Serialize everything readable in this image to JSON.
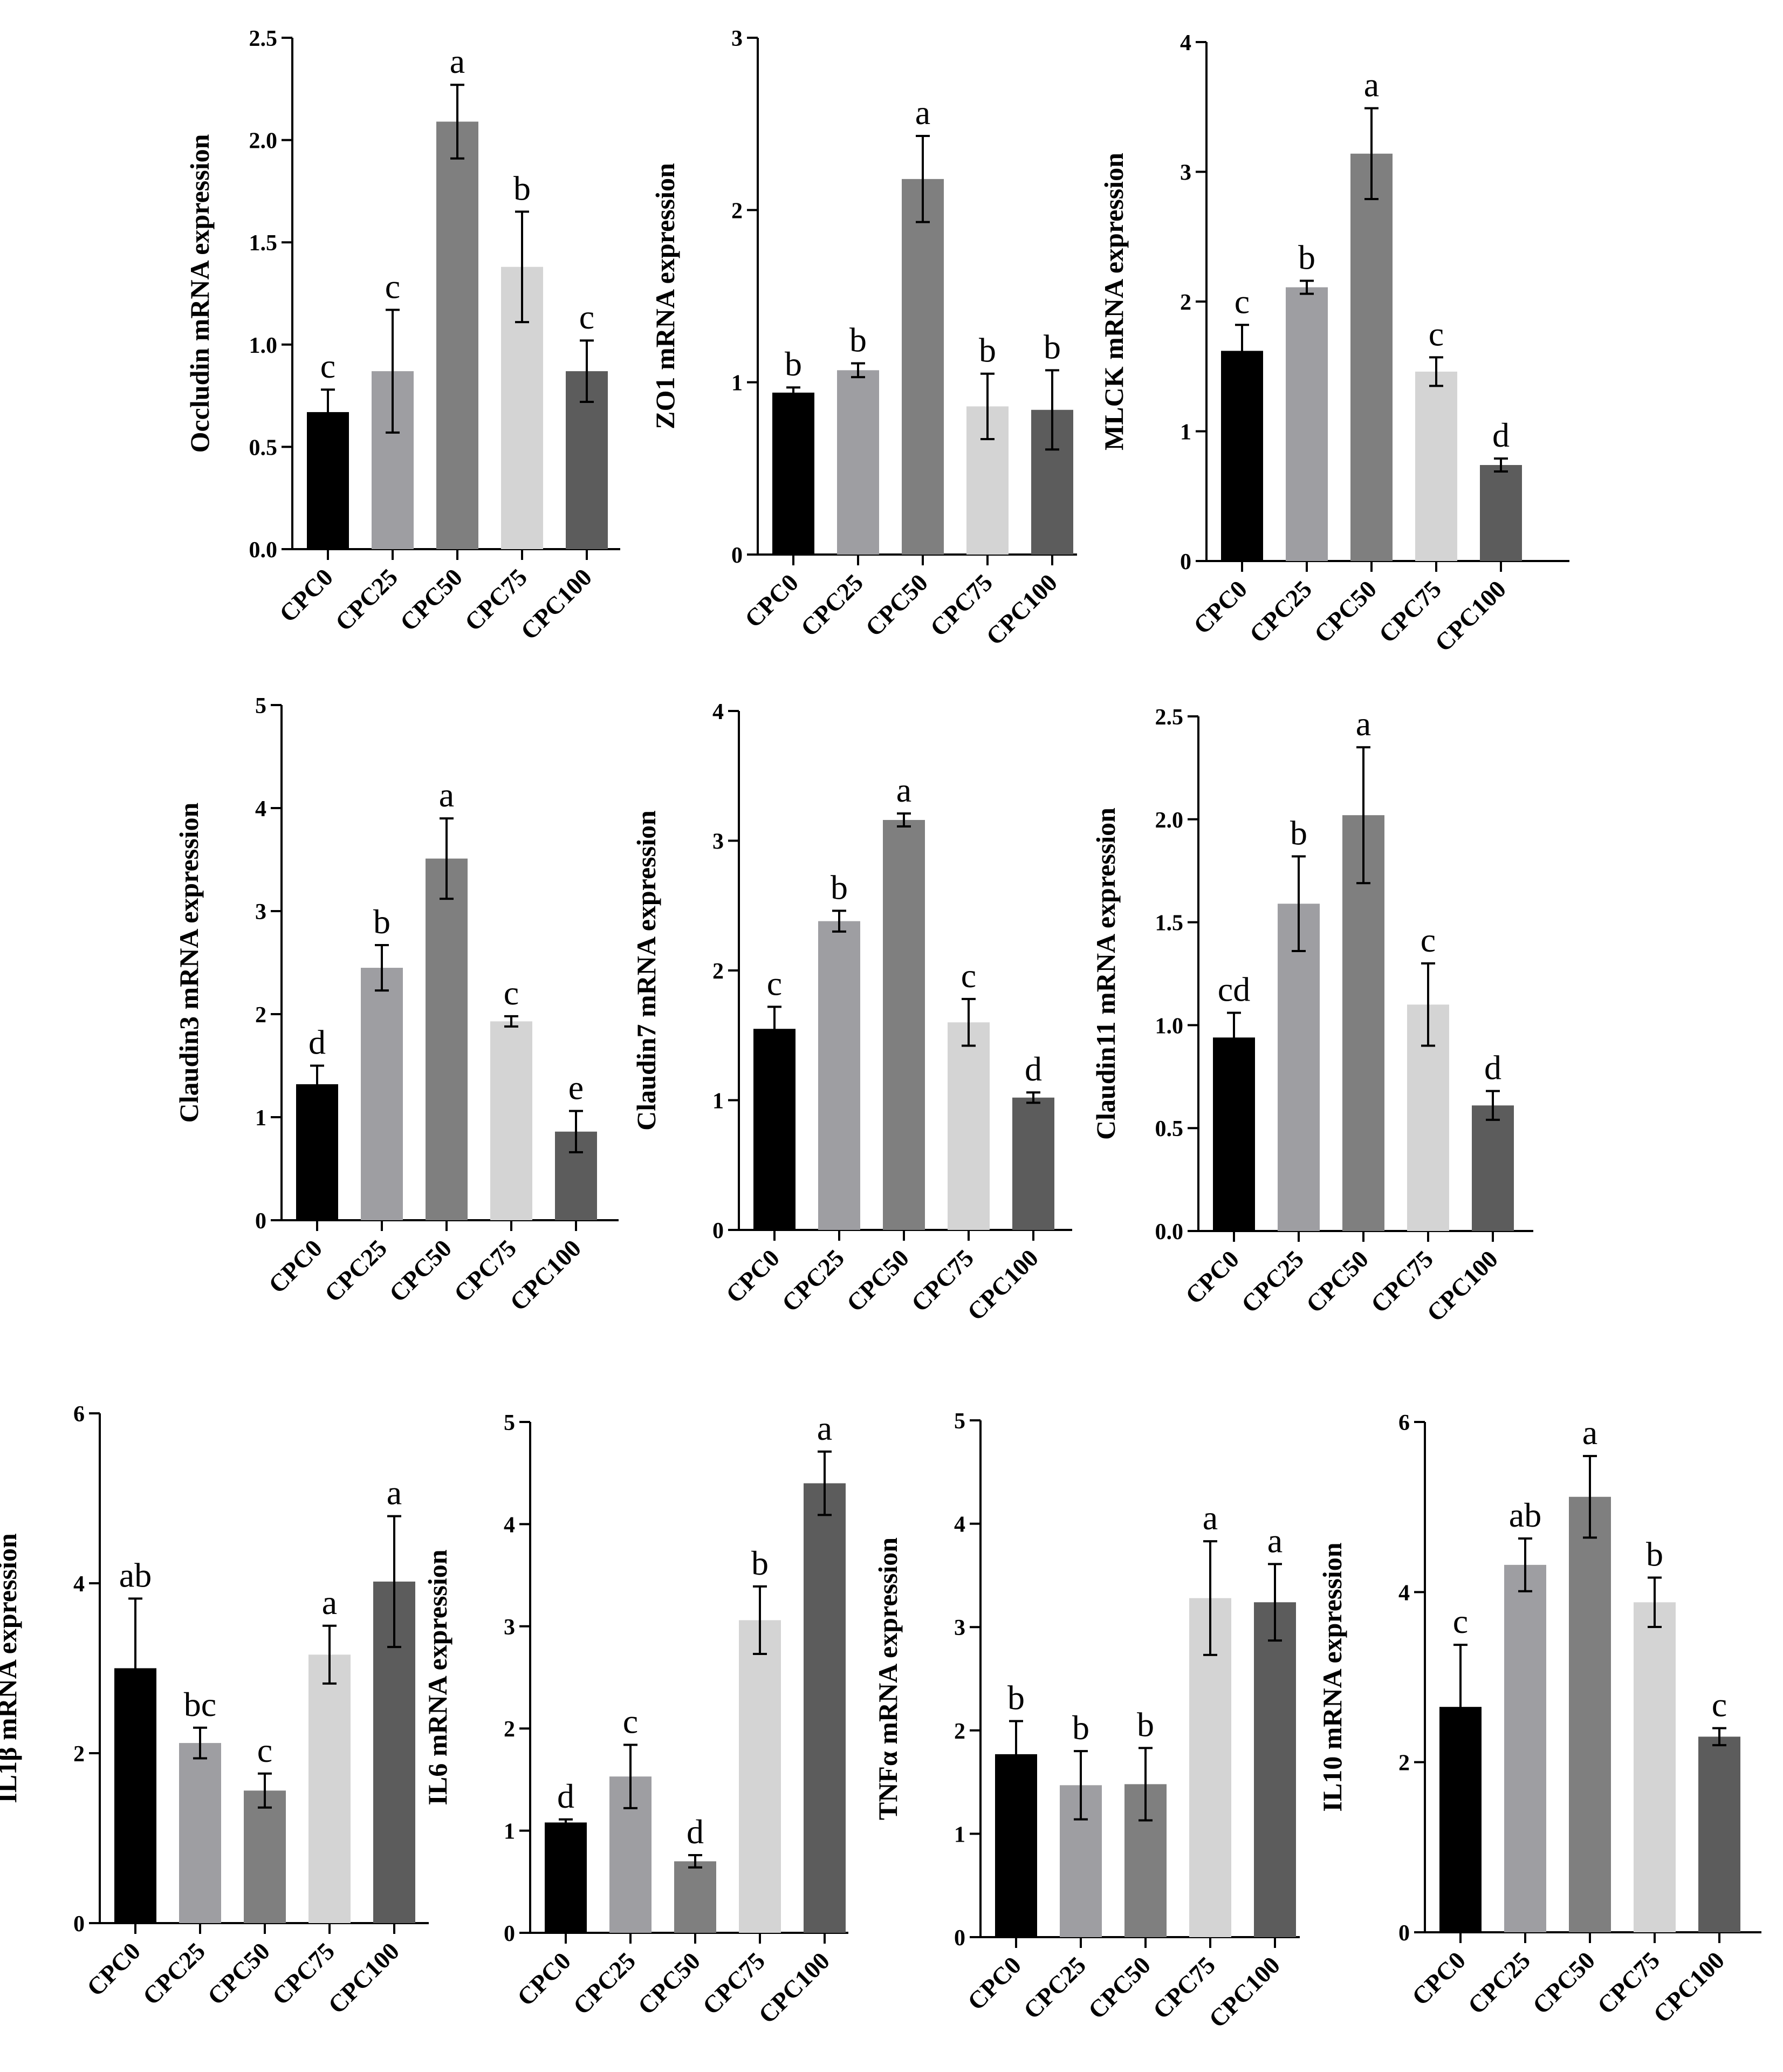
{
  "colors": {
    "CPC0": "#000000",
    "CPC25": "#9e9ea2",
    "CPC50": "#7f7f7f",
    "CPC75": "#d4d4d4",
    "CPC100": "#5c5c5c"
  },
  "chart_data": [
    {
      "type": "bar",
      "title": "",
      "xlabel": "",
      "ylabel": "Occludin mRNA expression",
      "categories": [
        "CPC0",
        "CPC25",
        "CPC50",
        "CPC75",
        "CPC100"
      ],
      "values": [
        0.67,
        0.87,
        2.09,
        1.38,
        0.87
      ],
      "errors": [
        0.11,
        0.3,
        0.18,
        0.27,
        0.15
      ],
      "significance": [
        "c",
        "c",
        "a",
        "b",
        "c"
      ],
      "ylim": [
        0,
        2.5
      ],
      "yticks": [
        "0.0",
        "0.5",
        "1.0",
        "1.5",
        "2.0",
        "2.5"
      ]
    },
    {
      "type": "bar",
      "title": "",
      "xlabel": "",
      "ylabel": "ZO1 mRNA expression",
      "categories": [
        "CPC0",
        "CPC25",
        "CPC50",
        "CPC75",
        "CPC100"
      ],
      "values": [
        0.94,
        1.07,
        2.18,
        0.86,
        0.84
      ],
      "errors": [
        0.03,
        0.04,
        0.25,
        0.19,
        0.23
      ],
      "significance": [
        "b",
        "b",
        "a",
        "b",
        "b"
      ],
      "ylim": [
        0,
        3
      ],
      "yticks": [
        "0",
        "1",
        "2",
        "3"
      ]
    },
    {
      "type": "bar",
      "title": "",
      "xlabel": "",
      "ylabel": "MLCK mRNA expression",
      "categories": [
        "CPC0",
        "CPC25",
        "CPC50",
        "CPC75",
        "CPC100"
      ],
      "values": [
        1.62,
        2.11,
        3.14,
        1.46,
        0.74
      ],
      "errors": [
        0.2,
        0.05,
        0.35,
        0.11,
        0.05
      ],
      "significance": [
        "c",
        "b",
        "a",
        "c",
        "d"
      ],
      "ylim": [
        0,
        4
      ],
      "yticks": [
        "0",
        "1",
        "2",
        "3",
        "4"
      ]
    },
    {
      "type": "bar",
      "title": "",
      "xlabel": "",
      "ylabel": "Claudin3 mRNA expression",
      "categories": [
        "CPC0",
        "CPC25",
        "CPC50",
        "CPC75",
        "CPC100"
      ],
      "values": [
        1.32,
        2.45,
        3.51,
        1.93,
        0.86
      ],
      "errors": [
        0.18,
        0.22,
        0.39,
        0.05,
        0.2
      ],
      "significance": [
        "d",
        "b",
        "a",
        "c",
        "e"
      ],
      "ylim": [
        0,
        5
      ],
      "yticks": [
        "0",
        "1",
        "2",
        "3",
        "4",
        "5"
      ]
    },
    {
      "type": "bar",
      "title": "",
      "xlabel": "",
      "ylabel": "Claudin7 mRNA expression",
      "categories": [
        "CPC0",
        "CPC25",
        "CPC50",
        "CPC75",
        "CPC100"
      ],
      "values": [
        1.55,
        2.38,
        3.16,
        1.6,
        1.02
      ],
      "errors": [
        0.17,
        0.08,
        0.05,
        0.18,
        0.04
      ],
      "significance": [
        "c",
        "b",
        "a",
        "c",
        "d"
      ],
      "ylim": [
        0,
        4
      ],
      "yticks": [
        "0",
        "1",
        "2",
        "3",
        "4"
      ]
    },
    {
      "type": "bar",
      "title": "",
      "xlabel": "",
      "ylabel": "Claudin11 mRNA expression",
      "categories": [
        "CPC0",
        "CPC25",
        "CPC50",
        "CPC75",
        "CPC100"
      ],
      "values": [
        0.94,
        1.59,
        2.02,
        1.1,
        0.61
      ],
      "errors": [
        0.12,
        0.23,
        0.33,
        0.2,
        0.07
      ],
      "significance": [
        "cd",
        "b",
        "a",
        "c",
        "d"
      ],
      "ylim": [
        0,
        2.5
      ],
      "yticks": [
        "0.0",
        "0.5",
        "1.0",
        "1.5",
        "2.0",
        "2.5"
      ]
    },
    {
      "type": "bar",
      "title": "",
      "xlabel": "",
      "ylabel": "IL1β mRNA expression",
      "categories": [
        "CPC0",
        "CPC25",
        "CPC50",
        "CPC75",
        "CPC100"
      ],
      "values": [
        3.0,
        2.12,
        1.56,
        3.16,
        4.02
      ],
      "errors": [
        0.82,
        0.18,
        0.2,
        0.34,
        0.77
      ],
      "significance": [
        "ab",
        "bc",
        "c",
        "a",
        "a"
      ],
      "ylim": [
        0,
        6
      ],
      "yticks": [
        "0",
        "2",
        "4",
        "6"
      ]
    },
    {
      "type": "bar",
      "title": "",
      "xlabel": "",
      "ylabel": "IL6 mRNA expression",
      "categories": [
        "CPC0",
        "CPC25",
        "CPC50",
        "CPC75",
        "CPC100"
      ],
      "values": [
        1.08,
        1.53,
        0.7,
        3.06,
        4.4
      ],
      "errors": [
        0.03,
        0.31,
        0.06,
        0.33,
        0.31
      ],
      "significance": [
        "d",
        "c",
        "d",
        "b",
        "a"
      ],
      "ylim": [
        0,
        5
      ],
      "yticks": [
        "0",
        "1",
        "2",
        "3",
        "4",
        "5"
      ]
    },
    {
      "type": "bar",
      "title": "",
      "xlabel": "",
      "ylabel": "TNFα mRNA expression",
      "categories": [
        "CPC0",
        "CPC25",
        "CPC50",
        "CPC75",
        "CPC100"
      ],
      "values": [
        1.77,
        1.47,
        1.48,
        3.28,
        3.24
      ],
      "errors": [
        0.32,
        0.33,
        0.35,
        0.55,
        0.37
      ],
      "significance": [
        "b",
        "b",
        "b",
        "a",
        "a"
      ],
      "ylim": [
        0,
        5
      ],
      "yticks": [
        "0",
        "1",
        "2",
        "3",
        "4",
        "5"
      ]
    },
    {
      "type": "bar",
      "title": "",
      "xlabel": "",
      "ylabel": "IL10 mRNA expression",
      "categories": [
        "CPC0",
        "CPC25",
        "CPC50",
        "CPC75",
        "CPC100"
      ],
      "values": [
        2.65,
        4.32,
        5.12,
        3.88,
        2.3
      ],
      "errors": [
        0.73,
        0.31,
        0.48,
        0.29,
        0.1
      ],
      "significance": [
        "c",
        "ab",
        "a",
        "b",
        "c"
      ],
      "ylim": [
        0,
        6
      ],
      "yticks": [
        "0",
        "2",
        "4",
        "6"
      ]
    }
  ]
}
